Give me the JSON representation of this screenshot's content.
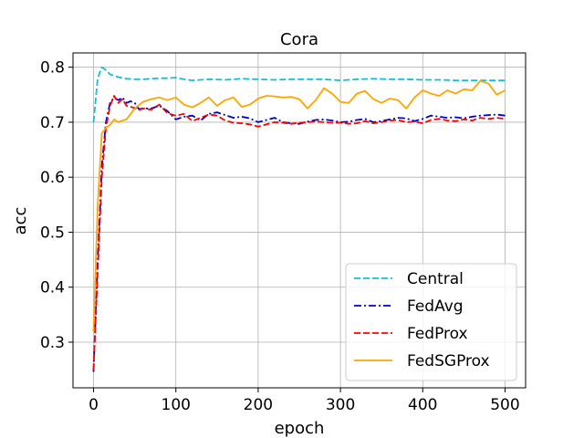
{
  "chart_data": {
    "type": "line",
    "title": "Cora",
    "xlabel": "epoch",
    "ylabel": "acc",
    "xlim": [
      -25,
      525
    ],
    "ylim": [
      0.217,
      0.826
    ],
    "xticks": [
      0,
      100,
      200,
      300,
      400,
      500
    ],
    "xtick_labels": [
      "0",
      "100",
      "200",
      "300",
      "400",
      "500"
    ],
    "yticks": [
      0.3,
      0.4,
      0.5,
      0.6,
      0.7,
      0.8
    ],
    "ytick_labels": [
      "0.3",
      "0.4",
      "0.5",
      "0.6",
      "0.7",
      "0.8"
    ],
    "grid": true,
    "legend_position": "lower-right",
    "series": [
      {
        "name": "Central",
        "color": "#17becf",
        "style": "dashed",
        "x": [
          0,
          5,
          10,
          15,
          20,
          30,
          40,
          50,
          60,
          70,
          80,
          90,
          100,
          110,
          120,
          140,
          160,
          180,
          200,
          220,
          240,
          260,
          280,
          300,
          320,
          340,
          360,
          380,
          400,
          420,
          440,
          460,
          480,
          500
        ],
        "y": [
          0.7,
          0.78,
          0.8,
          0.795,
          0.787,
          0.782,
          0.779,
          0.778,
          0.778,
          0.779,
          0.78,
          0.78,
          0.781,
          0.778,
          0.776,
          0.778,
          0.777,
          0.779,
          0.778,
          0.777,
          0.778,
          0.778,
          0.778,
          0.776,
          0.778,
          0.779,
          0.778,
          0.778,
          0.777,
          0.777,
          0.776,
          0.776,
          0.776,
          0.776
        ]
      },
      {
        "name": "FedAvg",
        "color": "#0000cc",
        "style": "dashdot",
        "x": [
          0,
          5,
          10,
          15,
          20,
          25,
          30,
          35,
          40,
          45,
          50,
          55,
          60,
          70,
          80,
          90,
          100,
          110,
          120,
          130,
          140,
          150,
          160,
          170,
          180,
          190,
          200,
          210,
          220,
          230,
          240,
          250,
          260,
          270,
          280,
          290,
          300,
          310,
          320,
          330,
          340,
          350,
          360,
          370,
          380,
          390,
          400,
          410,
          420,
          430,
          440,
          450,
          460,
          470,
          480,
          490,
          500
        ],
        "y": [
          0.246,
          0.45,
          0.62,
          0.7,
          0.735,
          0.745,
          0.74,
          0.745,
          0.735,
          0.738,
          0.735,
          0.724,
          0.725,
          0.725,
          0.73,
          0.72,
          0.705,
          0.71,
          0.712,
          0.703,
          0.715,
          0.718,
          0.713,
          0.708,
          0.71,
          0.707,
          0.7,
          0.704,
          0.708,
          0.7,
          0.698,
          0.697,
          0.701,
          0.704,
          0.705,
          0.703,
          0.7,
          0.701,
          0.704,
          0.706,
          0.7,
          0.702,
          0.705,
          0.708,
          0.707,
          0.702,
          0.706,
          0.712,
          0.71,
          0.708,
          0.709,
          0.707,
          0.71,
          0.712,
          0.713,
          0.714,
          0.712
        ]
      },
      {
        "name": "FedProx",
        "color": "#ff0000",
        "style": "dashed",
        "x": [
          0,
          5,
          10,
          15,
          20,
          25,
          30,
          35,
          40,
          45,
          50,
          55,
          60,
          70,
          80,
          90,
          100,
          110,
          120,
          130,
          140,
          150,
          160,
          170,
          180,
          190,
          200,
          210,
          220,
          230,
          240,
          250,
          260,
          270,
          280,
          290,
          300,
          310,
          320,
          330,
          340,
          350,
          360,
          370,
          380,
          390,
          400,
          410,
          420,
          430,
          440,
          450,
          460,
          470,
          480,
          490,
          500
        ],
        "y": [
          0.25,
          0.43,
          0.6,
          0.69,
          0.73,
          0.748,
          0.735,
          0.742,
          0.73,
          0.728,
          0.726,
          0.722,
          0.725,
          0.723,
          0.732,
          0.716,
          0.712,
          0.715,
          0.702,
          0.708,
          0.714,
          0.712,
          0.703,
          0.699,
          0.698,
          0.696,
          0.692,
          0.696,
          0.7,
          0.699,
          0.697,
          0.699,
          0.7,
          0.701,
          0.7,
          0.699,
          0.699,
          0.697,
          0.698,
          0.702,
          0.698,
          0.7,
          0.703,
          0.704,
          0.7,
          0.701,
          0.698,
          0.704,
          0.706,
          0.703,
          0.702,
          0.705,
          0.703,
          0.708,
          0.706,
          0.708,
          0.706
        ]
      },
      {
        "name": "FedSGProx",
        "color": "#ffa500",
        "style": "solid",
        "x": [
          0,
          5,
          10,
          15,
          20,
          25,
          30,
          35,
          40,
          50,
          60,
          70,
          80,
          90,
          100,
          110,
          120,
          130,
          140,
          150,
          160,
          170,
          180,
          190,
          200,
          210,
          220,
          230,
          240,
          250,
          260,
          270,
          280,
          290,
          300,
          310,
          320,
          330,
          340,
          350,
          360,
          370,
          380,
          390,
          400,
          410,
          420,
          430,
          440,
          450,
          460,
          470,
          480,
          490,
          500
        ],
        "y": [
          0.32,
          0.55,
          0.68,
          0.69,
          0.695,
          0.705,
          0.7,
          0.703,
          0.705,
          0.725,
          0.737,
          0.742,
          0.745,
          0.74,
          0.745,
          0.732,
          0.727,
          0.735,
          0.745,
          0.73,
          0.74,
          0.745,
          0.728,
          0.732,
          0.743,
          0.748,
          0.747,
          0.745,
          0.746,
          0.742,
          0.725,
          0.74,
          0.762,
          0.752,
          0.737,
          0.735,
          0.752,
          0.757,
          0.742,
          0.735,
          0.743,
          0.74,
          0.725,
          0.745,
          0.758,
          0.752,
          0.748,
          0.758,
          0.752,
          0.76,
          0.758,
          0.775,
          0.77,
          0.75,
          0.758
        ]
      }
    ]
  }
}
